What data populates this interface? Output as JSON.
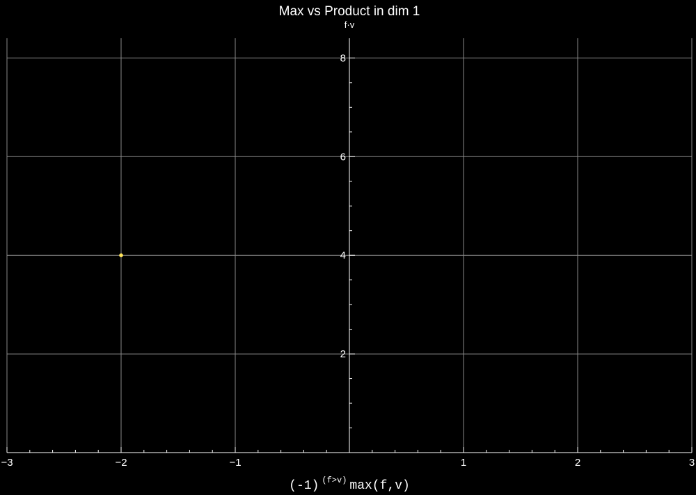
{
  "chart_data": {
    "type": "scatter",
    "title": "Max vs Product in dim 1",
    "ylabel": "f·v",
    "xlabel": {
      "base": "(-1)",
      "superscript": "(f>v)",
      "rest": "max(f,v)"
    },
    "xlim": [
      -3,
      3
    ],
    "ylim": [
      0,
      8.4
    ],
    "x_ticks": [
      {
        "value": -3,
        "label": "−3"
      },
      {
        "value": -2,
        "label": "−2"
      },
      {
        "value": -1,
        "label": "−1"
      },
      {
        "value": 1,
        "label": "1"
      },
      {
        "value": 2,
        "label": "2"
      },
      {
        "value": 3,
        "label": "3"
      }
    ],
    "y_ticks": [
      {
        "value": 2,
        "label": "2"
      },
      {
        "value": 4,
        "label": "4"
      },
      {
        "value": 6,
        "label": "6"
      },
      {
        "value": 8,
        "label": "8"
      }
    ],
    "x_minor_step": 0.2,
    "y_minor_step": 0.5,
    "grid": true,
    "points": [
      {
        "x": -2,
        "y": 4
      }
    ],
    "colors": {
      "background": "#000000",
      "grid": "#8a8a8a",
      "axis": "#ffffff",
      "point": "#ffe45a"
    }
  }
}
